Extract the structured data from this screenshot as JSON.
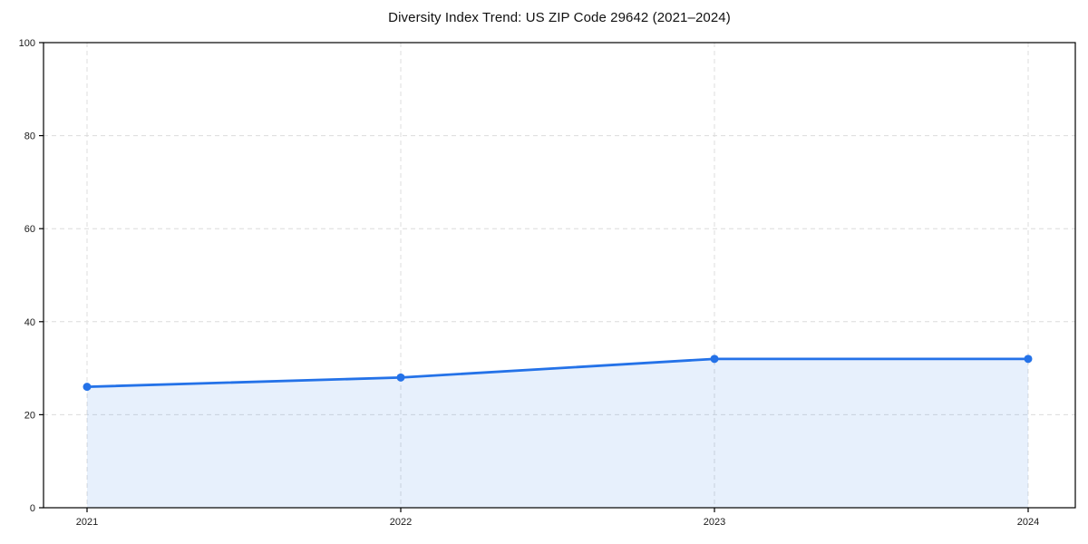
{
  "chart_data": {
    "type": "area",
    "title": "Diversity Index Trend: US ZIP Code 29642 (2021–2024)",
    "categories": [
      "2021",
      "2022",
      "2023",
      "2024"
    ],
    "series": [
      {
        "name": "Diversity Index",
        "values": [
          26,
          28,
          32,
          32
        ]
      }
    ],
    "xlabel": "",
    "ylabel": "",
    "ylim": [
      0,
      100
    ],
    "yticks": [
      0,
      20,
      40,
      60,
      80,
      100
    ],
    "grid": true,
    "grid_style": "dashed",
    "legend_position": "none",
    "marker": "circle",
    "colors": {
      "line": "#2472e8",
      "marker": "#2472e8",
      "fill": "#2472e8",
      "fill_opacity": 0.11,
      "grid": "#dcdcdc",
      "axis": "#000000",
      "tick_text": "#1a1a1a",
      "title_text": "#111111",
      "background": "#ffffff"
    }
  }
}
